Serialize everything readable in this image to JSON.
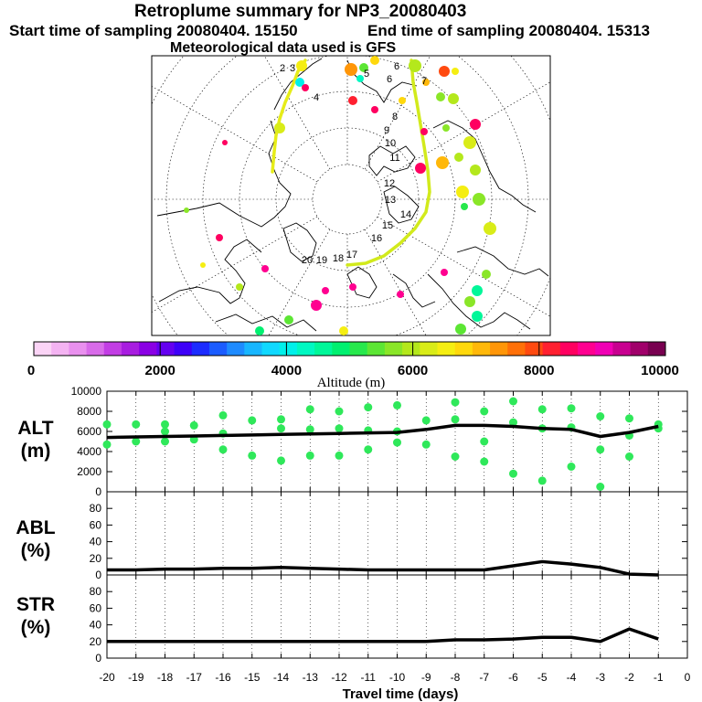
{
  "header": {
    "title": "Retroplume summary for NP3_20080403",
    "start_sampling": "Start time of sampling 20080404. 15150",
    "end_sampling": "End time of sampling 20080404. 15313",
    "met_data": "Meteorological data used is GFS"
  },
  "colorbar": {
    "label": "Altitude (m)",
    "tick_labels": [
      "0",
      "2000",
      "4000",
      "6000",
      "8000",
      "10000"
    ],
    "colors": [
      "#fbd4f6",
      "#f4b3f2",
      "#e990ee",
      "#d86be9",
      "#c23de4",
      "#a81de0",
      "#8a00e4",
      "#6400f0",
      "#3d00f8",
      "#1c2cff",
      "#1b5cff",
      "#1e8bff",
      "#18b6ff",
      "#10d8ff",
      "#00f0ea",
      "#00f8c2",
      "#00f799",
      "#00f070",
      "#27e84c",
      "#5ce634",
      "#8ae628",
      "#b4e81c",
      "#d9ec18",
      "#f5ee12",
      "#ffd80c",
      "#ffb80a",
      "#ff9608",
      "#ff7008",
      "#ff4a10",
      "#ff2030",
      "#ff0060",
      "#ff0090",
      "#f000b4",
      "#c80090",
      "#a0006a",
      "#780050"
    ]
  },
  "map": {
    "trajectory_labels": [
      "2",
      "3",
      "4",
      "5",
      "6",
      "6",
      "7",
      "8",
      "9",
      "10",
      "11",
      "12",
      "13",
      "14",
      "15",
      "16",
      "17",
      "18",
      "19",
      "20"
    ]
  },
  "chart_data": [
    {
      "type": "line",
      "panel": "ALT",
      "ylabel": "ALT (m)",
      "ylim": [
        0,
        10000
      ],
      "ytick_labels": [
        "0",
        "2000",
        "4000",
        "6000",
        "8000",
        "10000"
      ],
      "x": [
        -20,
        -19,
        -18,
        -17,
        -16,
        -15,
        -14,
        -13,
        -12,
        -11,
        -10,
        -9,
        -8,
        -7,
        -6,
        -5,
        -4,
        -3,
        -2,
        -1
      ],
      "series": [
        {
          "name": "mean altitude",
          "values": [
            5400,
            5450,
            5500,
            5550,
            5600,
            5650,
            5700,
            5750,
            5800,
            5850,
            5900,
            6200,
            6600,
            6600,
            6500,
            6300,
            6200,
            5500,
            5900,
            6500
          ]
        }
      ],
      "cluster_points": [
        {
          "x": -20,
          "y": 6700
        },
        {
          "x": -20,
          "y": 4700
        },
        {
          "x": -19,
          "y": 6700
        },
        {
          "x": -19,
          "y": 5000
        },
        {
          "x": -18,
          "y": 6700
        },
        {
          "x": -18,
          "y": 6000
        },
        {
          "x": -18,
          "y": 5000
        },
        {
          "x": -17,
          "y": 6600
        },
        {
          "x": -17,
          "y": 5200
        },
        {
          "x": -16,
          "y": 7600
        },
        {
          "x": -16,
          "y": 5800
        },
        {
          "x": -16,
          "y": 4200
        },
        {
          "x": -15,
          "y": 7100
        },
        {
          "x": -15,
          "y": 3600
        },
        {
          "x": -14,
          "y": 7200
        },
        {
          "x": -14,
          "y": 6300
        },
        {
          "x": -14,
          "y": 3100
        },
        {
          "x": -13,
          "y": 8200
        },
        {
          "x": -13,
          "y": 6200
        },
        {
          "x": -13,
          "y": 3600
        },
        {
          "x": -12,
          "y": 8000
        },
        {
          "x": -12,
          "y": 6300
        },
        {
          "x": -12,
          "y": 3600
        },
        {
          "x": -11,
          "y": 8400
        },
        {
          "x": -11,
          "y": 6100
        },
        {
          "x": -11,
          "y": 4200
        },
        {
          "x": -10,
          "y": 8600
        },
        {
          "x": -10,
          "y": 6000
        },
        {
          "x": -10,
          "y": 4900
        },
        {
          "x": -9,
          "y": 7100
        },
        {
          "x": -9,
          "y": 4700
        },
        {
          "x": -8,
          "y": 8900
        },
        {
          "x": -8,
          "y": 7200
        },
        {
          "x": -8,
          "y": 3500
        },
        {
          "x": -7,
          "y": 8000
        },
        {
          "x": -7,
          "y": 5000
        },
        {
          "x": -7,
          "y": 3000
        },
        {
          "x": -6,
          "y": 9000
        },
        {
          "x": -6,
          "y": 6900
        },
        {
          "x": -6,
          "y": 1800
        },
        {
          "x": -5,
          "y": 8200
        },
        {
          "x": -5,
          "y": 6300
        },
        {
          "x": -5,
          "y": 1100
        },
        {
          "x": -4,
          "y": 8300
        },
        {
          "x": -4,
          "y": 6400
        },
        {
          "x": -4,
          "y": 2500
        },
        {
          "x": -3,
          "y": 7500
        },
        {
          "x": -3,
          "y": 4200
        },
        {
          "x": -3,
          "y": 500
        },
        {
          "x": -2,
          "y": 7300
        },
        {
          "x": -2,
          "y": 5600
        },
        {
          "x": -2,
          "y": 3500
        },
        {
          "x": -1,
          "y": 6700
        },
        {
          "x": -1,
          "y": 6300
        }
      ]
    },
    {
      "type": "line",
      "panel": "ABL",
      "ylabel": "ABL (%)",
      "ylim": [
        0,
        100
      ],
      "ytick_labels": [
        "0",
        "20",
        "40",
        "60",
        "80"
      ],
      "x": [
        -20,
        -19,
        -18,
        -17,
        -16,
        -15,
        -14,
        -13,
        -12,
        -11,
        -10,
        -9,
        -8,
        -7,
        -6,
        -5,
        -4,
        -3,
        -2,
        -1
      ],
      "series": [
        {
          "name": "fraction in ABL",
          "values": [
            6,
            6,
            7,
            7,
            8,
            8,
            9,
            8,
            7,
            6,
            6,
            6,
            6,
            6,
            11,
            16,
            13,
            9,
            1,
            0
          ]
        }
      ]
    },
    {
      "type": "line",
      "panel": "STR",
      "ylabel": "STR (%)",
      "ylim": [
        0,
        100
      ],
      "ytick_labels": [
        "0",
        "20",
        "40",
        "60",
        "80"
      ],
      "xlabel": "Travel time (days)",
      "xlim": [
        -20,
        0
      ],
      "xtick_labels": [
        "-20",
        "-19",
        "-18",
        "-17",
        "-16",
        "-15",
        "-14",
        "-13",
        "-12",
        "-11",
        "-10",
        "-9",
        "-8",
        "-7",
        "-6",
        "-5",
        "-4",
        "-3",
        "-2",
        "-1",
        "0"
      ],
      "x": [
        -20,
        -19,
        -18,
        -17,
        -16,
        -15,
        -14,
        -13,
        -12,
        -11,
        -10,
        -9,
        -8,
        -7,
        -6,
        -5,
        -4,
        -3,
        -2,
        -1
      ],
      "series": [
        {
          "name": "fraction in stratosphere",
          "values": [
            20,
            20,
            20,
            20,
            20,
            20,
            20,
            20,
            20,
            20,
            20,
            20,
            22,
            22,
            23,
            25,
            25,
            20,
            35,
            23
          ]
        }
      ]
    }
  ]
}
